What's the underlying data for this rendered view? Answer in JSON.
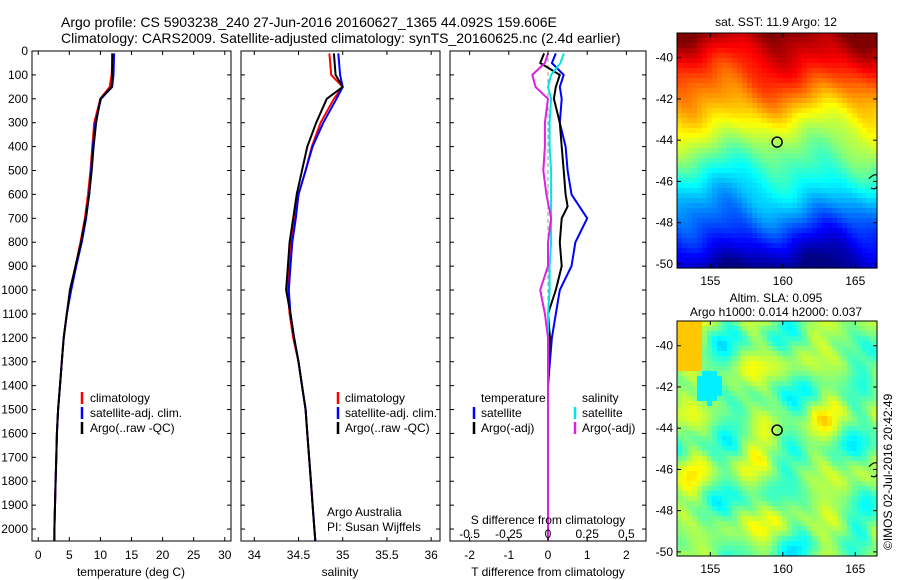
{
  "header": {
    "line1": "Argo profile: CS 5903238_240 27-Jun-2016 20160627_1365 44.092S 159.606E",
    "line2": "Climatology: CARS2009. Satellite-adjusted climatology: synTS_20160625.nc (2.4d earlier)"
  },
  "credits": {
    "program": "Argo Australia",
    "pi": "PI: Susan Wijffels",
    "stamp": "©IMOS 02-Jul-2016 20:42:49"
  },
  "colors": {
    "climatology": "#ff0000",
    "satellite": "#0000ff",
    "argo": "#000000",
    "sat_salinity": "#00e5e5",
    "argo_salinity": "#e020e0"
  },
  "chart_data": [
    {
      "type": "line",
      "panel": "temperature",
      "xlabel": "temperature (deg C)",
      "xlim": [
        -1,
        31
      ],
      "xticks": [
        0,
        5,
        10,
        15,
        20,
        25,
        30
      ],
      "ylim": [
        2050,
        0
      ],
      "yticks": [
        0,
        100,
        200,
        300,
        400,
        500,
        600,
        700,
        800,
        900,
        1000,
        1100,
        1200,
        1300,
        1400,
        1500,
        1600,
        1700,
        1800,
        1900,
        2000
      ],
      "legend": [
        "climatology",
        "satellite-adj. clim.",
        "Argo(..raw -QC)"
      ],
      "series": [
        {
          "name": "climatology",
          "color": "#ff0000",
          "depth": [
            10,
            100,
            150,
            200,
            300,
            400,
            500,
            600,
            700,
            800,
            900,
            1000,
            1100,
            1200,
            1300,
            1400,
            1500,
            1600,
            1700,
            1800,
            1900,
            2000,
            2050
          ],
          "values": [
            12.0,
            11.8,
            11.5,
            10.0,
            9.0,
            8.7,
            8.4,
            8.0,
            7.5,
            6.8,
            6.0,
            5.2,
            4.6,
            4.1,
            3.8,
            3.5,
            3.2,
            3.0,
            2.9,
            2.8,
            2.7,
            2.6,
            2.6
          ]
        },
        {
          "name": "satellite-adj. clim.",
          "color": "#0000ff",
          "depth": [
            10,
            100,
            150,
            200,
            300,
            400,
            500,
            600,
            700,
            800,
            900,
            1000,
            1100,
            1200,
            1300,
            1400,
            1500,
            1600,
            1700,
            1800,
            1900,
            2000,
            2050
          ],
          "values": [
            12.2,
            12.1,
            11.9,
            10.1,
            9.2,
            8.8,
            8.5,
            8.2,
            7.7,
            7.0,
            6.1,
            5.3,
            4.6,
            4.1,
            3.8,
            3.5,
            3.2,
            3.0,
            2.9,
            2.8,
            2.7,
            2.6,
            2.6
          ]
        },
        {
          "name": "Argo(..raw -QC)",
          "color": "#000000",
          "depth": [
            10,
            100,
            150,
            200,
            300,
            400,
            500,
            600,
            700,
            800,
            900,
            1000,
            1100,
            1200,
            1300,
            1400,
            1500,
            1600,
            1700,
            1800,
            1900,
            2000,
            2050
          ],
          "values": [
            11.9,
            11.9,
            11.8,
            10.0,
            9.3,
            8.9,
            8.6,
            8.2,
            7.6,
            6.9,
            6.0,
            5.1,
            4.6,
            4.1,
            3.8,
            3.5,
            3.2,
            3.0,
            2.9,
            2.8,
            2.7,
            2.6,
            2.6
          ]
        }
      ]
    },
    {
      "type": "line",
      "panel": "salinity",
      "xlabel": "salinity",
      "xlim": [
        33.85,
        36.1
      ],
      "xticks": [
        34,
        34.5,
        35,
        35.5,
        36
      ],
      "ylim": [
        2050,
        0
      ],
      "legend": [
        "climatology",
        "satellite-adj. clim.",
        "Argo(..raw -QC)"
      ],
      "series": [
        {
          "name": "climatology",
          "color": "#ff0000",
          "depth": [
            10,
            100,
            150,
            200,
            300,
            400,
            500,
            600,
            700,
            800,
            900,
            1000,
            1100,
            1200,
            1300,
            1400,
            1500,
            1600,
            1700,
            1800,
            1900,
            2000,
            2050
          ],
          "values": [
            34.85,
            34.87,
            35.0,
            34.9,
            34.75,
            34.65,
            34.58,
            34.5,
            34.46,
            34.42,
            34.4,
            34.38,
            34.4,
            34.44,
            34.5,
            34.54,
            34.58,
            34.6,
            34.62,
            34.64,
            34.66,
            34.68,
            34.69
          ]
        },
        {
          "name": "satellite-adj. clim.",
          "color": "#0000ff",
          "depth": [
            10,
            100,
            150,
            200,
            300,
            400,
            500,
            600,
            700,
            800,
            900,
            1000,
            1100,
            1200,
            1300,
            1400,
            1500,
            1600,
            1700,
            1800,
            1900,
            2000,
            2050
          ],
          "values": [
            34.95,
            34.97,
            35.0,
            34.93,
            34.78,
            34.66,
            34.58,
            34.5,
            34.47,
            34.43,
            34.41,
            34.39,
            34.41,
            34.45,
            34.5,
            34.54,
            34.58,
            34.6,
            34.62,
            34.64,
            34.66,
            34.68,
            34.69
          ]
        },
        {
          "name": "Argo(..raw -QC)",
          "color": "#000000",
          "depth": [
            10,
            100,
            150,
            200,
            300,
            400,
            500,
            600,
            700,
            800,
            900,
            1000,
            1100,
            1200,
            1300,
            1400,
            1500,
            1600,
            1700,
            1800,
            1900,
            2000,
            2050
          ],
          "values": [
            34.9,
            34.92,
            35.0,
            34.82,
            34.7,
            34.6,
            34.54,
            34.48,
            34.44,
            34.4,
            34.38,
            34.36,
            34.41,
            34.45,
            34.5,
            34.54,
            34.58,
            34.6,
            34.62,
            34.64,
            34.66,
            34.68,
            34.69
          ]
        }
      ]
    },
    {
      "type": "line",
      "panel": "differences",
      "xlabel": "T difference from climatology",
      "xlabel_top": "S difference from climatology",
      "xlim": [
        -2.5,
        2.5
      ],
      "xticks": [
        -2,
        -1,
        0,
        1,
        2
      ],
      "xlim_salinity": [
        -0.625,
        0.625
      ],
      "xticks_salinity": [
        -0.5,
        -0.25,
        0,
        0.25,
        0.5
      ],
      "ylim": [
        2050,
        0
      ],
      "legend_temperature": {
        "title": "temperature",
        "items": [
          "satellite",
          "Argo(-adj)"
        ]
      },
      "legend_salinity": {
        "title": "salinity",
        "items": [
          "satellite",
          "Argo(-adj)"
        ]
      },
      "series": [
        {
          "name": "temperature satellite",
          "color": "#0000ff",
          "units": "T",
          "depth": [
            10,
            50,
            100,
            150,
            200,
            300,
            400,
            500,
            600,
            650,
            700,
            800,
            900,
            1000,
            1100,
            1200,
            1400,
            1600,
            1800,
            2000,
            2050
          ],
          "values": [
            0.2,
            0.1,
            0.4,
            0.3,
            0.35,
            0.3,
            0.45,
            0.5,
            0.6,
            0.8,
            1.0,
            0.7,
            0.6,
            0.3,
            0.2,
            0.1,
            0.0,
            0.0,
            0.0,
            0.0,
            0.0
          ]
        },
        {
          "name": "temperature Argo(-adj)",
          "color": "#000000",
          "units": "T",
          "depth": [
            10,
            50,
            100,
            150,
            200,
            300,
            400,
            500,
            600,
            650,
            700,
            800,
            900,
            1000,
            1100,
            1200,
            1400,
            1600,
            1800,
            2000,
            2050
          ],
          "values": [
            -0.1,
            -0.2,
            0.3,
            0.2,
            0.15,
            0.3,
            0.35,
            0.4,
            0.45,
            0.5,
            0.35,
            0.3,
            0.35,
            0.2,
            0.0,
            0.05,
            0.0,
            0.0,
            0.0,
            0.0,
            0.0
          ]
        },
        {
          "name": "salinity satellite",
          "color": "#00e5e5",
          "units": "S",
          "depth": [
            10,
            50,
            100,
            150,
            200,
            300,
            400,
            500,
            600,
            700,
            800,
            900,
            1000,
            1100,
            1200,
            1400,
            1600,
            1800,
            2000,
            2050
          ],
          "values": [
            0.1,
            0.08,
            0.02,
            0.0,
            0.02,
            0.01,
            0.01,
            0.02,
            0.02,
            0.02,
            0.02,
            0.01,
            0.01,
            0.0,
            0.0,
            0.0,
            0.0,
            0.0,
            0.0,
            0.0
          ]
        },
        {
          "name": "salinity Argo(-adj)",
          "color": "#e020e0",
          "units": "S",
          "depth": [
            10,
            50,
            100,
            150,
            200,
            300,
            400,
            500,
            600,
            700,
            800,
            900,
            1000,
            1100,
            1200,
            1400,
            1600,
            1800,
            2000,
            2050
          ],
          "values": [
            0.0,
            -0.02,
            -0.1,
            -0.08,
            0.0,
            -0.02,
            -0.02,
            -0.03,
            -0.01,
            0.02,
            0.0,
            0.0,
            -0.05,
            -0.02,
            0.0,
            0.0,
            0.0,
            0.0,
            0.0,
            0.0
          ]
        }
      ]
    },
    {
      "type": "heatmap",
      "panel": "sst_map",
      "title": "sat. SST: 11.9 Argo: 12",
      "xlim": [
        152.7,
        166.5
      ],
      "ylim": [
        -50.2,
        -38.8
      ],
      "xticks": [
        155,
        160,
        165
      ],
      "yticks": [
        -40,
        -42,
        -44,
        -46,
        -48,
        -50
      ],
      "marker": {
        "lon": 159.606,
        "lat": -44.092
      }
    },
    {
      "type": "heatmap",
      "panel": "sla_map",
      "title_line1": "Altim. SLA: 0.095",
      "title_line2": "Argo h1000: 0.014 h2000: 0.037",
      "xlim": [
        152.7,
        166.5
      ],
      "ylim": [
        -50.2,
        -38.8
      ],
      "xticks": [
        155,
        160,
        165
      ],
      "yticks": [
        -40,
        -42,
        -44,
        -46,
        -48,
        -50
      ],
      "marker": {
        "lon": 159.606,
        "lat": -44.092
      }
    }
  ]
}
